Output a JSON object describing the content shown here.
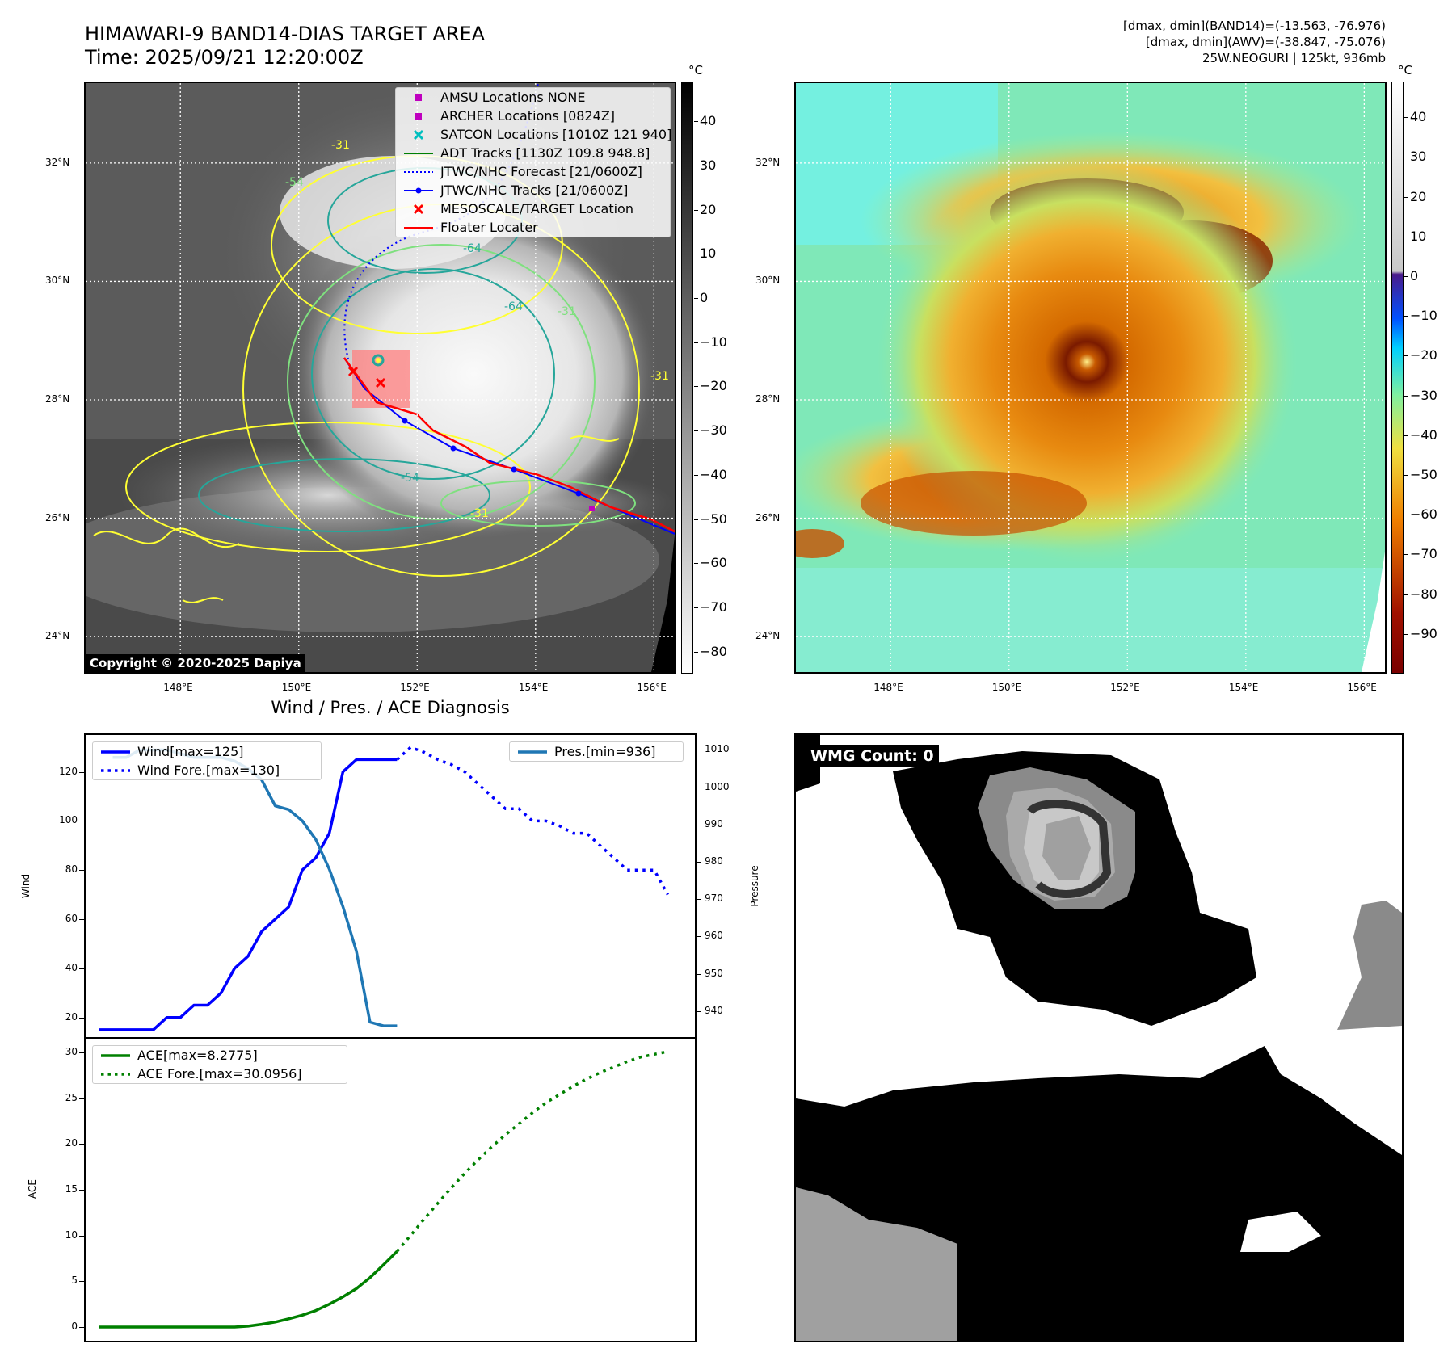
{
  "header": {
    "title_line1": "HIMAWARI-9 BAND14-DIAS TARGET AREA",
    "title_line2": "Time: 2025/09/21 12:20:00Z",
    "info_line1": "[dmax, dmin](BAND14)=(-13.563, -76.976)",
    "info_line2": "[dmax, dmin](AWV)=(-38.847, -75.076)",
    "info_line3": "25W.NEOGURI | 125kt, 936mb"
  },
  "map": {
    "lat_labels": [
      "32°N",
      "30°N",
      "28°N",
      "26°N",
      "24°N"
    ],
    "lat_values": [
      32,
      30,
      28,
      26,
      24
    ],
    "lon_labels": [
      "148°E",
      "150°E",
      "152°E",
      "154°E",
      "156°E"
    ],
    "lon_values": [
      148,
      150,
      152,
      154,
      156
    ],
    "lon_range": [
      146.4,
      156.35
    ],
    "lat_range": [
      23.4,
      33.35
    ],
    "copyright": "Copyright © 2020-2025 Dapiya",
    "colorbar_unit": "°C",
    "colorbar_ticks": [
      "40",
      "30",
      "20",
      "10",
      "0",
      "−10",
      "−20",
      "−30",
      "−40",
      "−50",
      "−60",
      "−70",
      "−80"
    ],
    "colorbar_tick_values": [
      40,
      30,
      20,
      10,
      0,
      -10,
      -20,
      -30,
      -40,
      -50,
      -60,
      -70,
      -80
    ],
    "colorbar_range": [
      -85,
      49
    ],
    "contour_labels": [
      "-31",
      "-54",
      "-64",
      "-54",
      "-31",
      "-64",
      "-31",
      "-31"
    ],
    "legend": [
      {
        "label": "AMSU Locations NONE",
        "marker": "square",
        "color": "#bf00bf"
      },
      {
        "label": "ARCHER Locations [0824Z]",
        "marker": "square",
        "color": "#bf00bf"
      },
      {
        "label": "SATCON Locations [1010Z 121 940]",
        "marker": "x",
        "color": "#00bfbf"
      },
      {
        "label": "ADT Tracks [1130Z 109.8 948.8]",
        "marker": "line",
        "color": "#008000"
      },
      {
        "label": "JTWC/NHC Forecast [21/0600Z]",
        "marker": "dotted",
        "color": "#0000ff"
      },
      {
        "label": "JTWC/NHC Tracks [21/0600Z]",
        "marker": "line-dot",
        "color": "#0000ff"
      },
      {
        "label": "MESOSCALE/TARGET Location",
        "marker": "x",
        "color": "#ff0000"
      },
      {
        "label": "Floater Locater",
        "marker": "line",
        "color": "#ff0000"
      }
    ]
  },
  "awv": {
    "colorbar_unit": "°C",
    "colorbar_ticks": [
      "40",
      "30",
      "20",
      "10",
      "0",
      "−10",
      "−20",
      "−30",
      "−40",
      "−50",
      "−60",
      "−70",
      "−80",
      "−90"
    ],
    "colorbar_tick_values": [
      40,
      30,
      20,
      10,
      0,
      -10,
      -20,
      -30,
      -40,
      -50,
      -60,
      -70,
      -80,
      -90
    ],
    "colorbar_range": [
      -100,
      49
    ]
  },
  "wmg": {
    "count_label": "WMG Count: 0"
  },
  "chart_data": [
    {
      "type": "line",
      "title": "Wind / Pres. / ACE Diagnosis",
      "ylabel": "Wind",
      "y2label": "Pressure",
      "ylim": [
        12,
        135
      ],
      "y2lim": [
        933,
        1014
      ],
      "xlim": [
        -1,
        44
      ],
      "yticks": [
        20,
        40,
        60,
        80,
        100,
        120
      ],
      "y2ticks": [
        940,
        950,
        960,
        970,
        980,
        990,
        1000,
        1010
      ],
      "series": [
        {
          "name": "Wind[max=125]",
          "color": "#0000ff",
          "style": "solid",
          "x": [
            0,
            1,
            2,
            3,
            4,
            5,
            6,
            7,
            8,
            9,
            10,
            11,
            12,
            13,
            14,
            15,
            16,
            17,
            18,
            19,
            20,
            21,
            22
          ],
          "y": [
            15,
            15,
            15,
            15,
            15,
            20,
            20,
            25,
            25,
            30,
            40,
            45,
            55,
            60,
            65,
            80,
            85,
            95,
            120,
            125,
            125,
            125,
            125
          ]
        },
        {
          "name": "Wind Fore.[max=130]",
          "color": "#0000ff",
          "style": "dotted",
          "x": [
            22,
            23,
            24,
            25,
            26,
            27,
            28,
            29,
            30,
            31,
            32,
            33,
            34,
            35,
            36,
            37,
            38,
            39,
            40,
            41,
            42
          ],
          "y": [
            125,
            130,
            128,
            125,
            123,
            120,
            115,
            110,
            105,
            105,
            100,
            100,
            98,
            95,
            95,
            90,
            85,
            80,
            80,
            80,
            70
          ]
        },
        {
          "name": "Pres.[min=936]",
          "color": "#1f77b4",
          "style": "solid",
          "axis": "right",
          "x": [
            1,
            2,
            3,
            4,
            5,
            6,
            7,
            8,
            9,
            10,
            11,
            12,
            13,
            14,
            15,
            16,
            17,
            18,
            19,
            20,
            21,
            22
          ],
          "y": [
            1008,
            1008,
            1010,
            1010,
            1010,
            1009,
            1008,
            1008,
            1008,
            1007,
            1005,
            1002,
            995,
            994,
            991,
            986,
            978,
            968,
            956,
            937,
            936,
            936
          ]
        }
      ]
    },
    {
      "type": "line",
      "ylabel": "ACE",
      "ylim": [
        -1.5,
        31.5
      ],
      "xlim": [
        -1,
        44
      ],
      "yticks": [
        0,
        5,
        10,
        15,
        20,
        25,
        30
      ],
      "series": [
        {
          "name": "ACE[max=8.2775]",
          "color": "#008000",
          "style": "solid",
          "x": [
            0,
            2,
            4,
            6,
            8,
            10,
            11,
            12,
            13,
            14,
            15,
            16,
            17,
            18,
            19,
            20,
            21,
            22
          ],
          "y": [
            0,
            0,
            0,
            0,
            0,
            0,
            0.1,
            0.3,
            0.55,
            0.9,
            1.3,
            1.8,
            2.5,
            3.3,
            4.2,
            5.4,
            6.8,
            8.2775
          ]
        },
        {
          "name": "ACE Fore.[max=30.0956]",
          "color": "#008000",
          "style": "dotted",
          "x": [
            22,
            23,
            24,
            25,
            26,
            27,
            28,
            29,
            30,
            31,
            32,
            33,
            34,
            35,
            36,
            37,
            38,
            39,
            40,
            41,
            42
          ],
          "y": [
            8.2775,
            10,
            11.8,
            13.5,
            15.2,
            16.8,
            18.3,
            19.7,
            21,
            22.2,
            23.4,
            24.5,
            25.4,
            26.3,
            27.1,
            27.8,
            28.4,
            29,
            29.5,
            29.8,
            30.0956
          ]
        }
      ]
    }
  ]
}
